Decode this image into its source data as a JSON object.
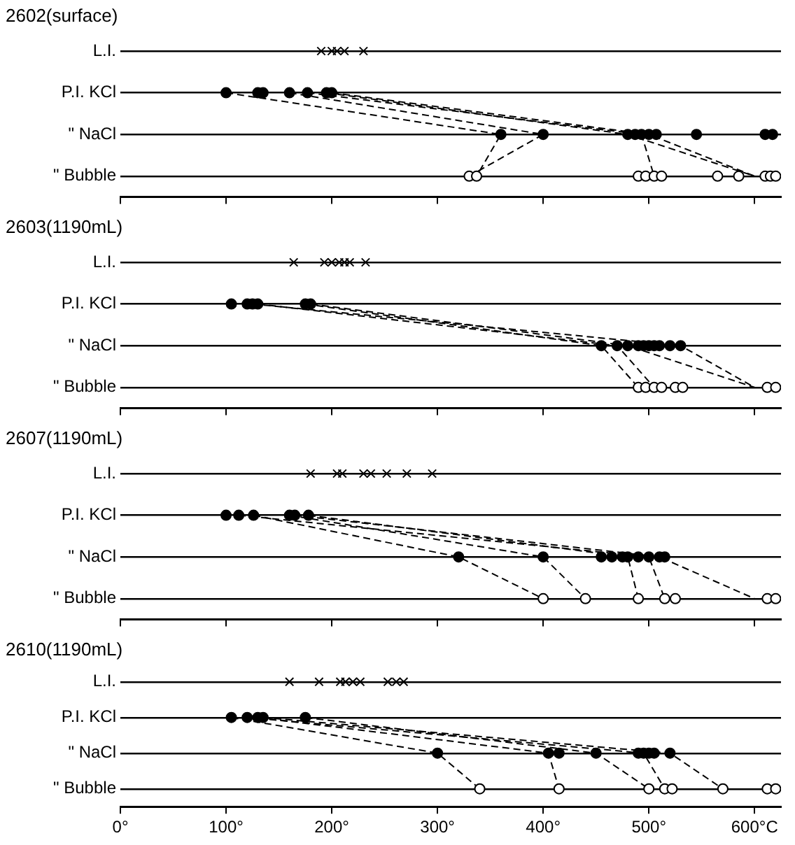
{
  "chart_data": [
    {
      "type": "scatter",
      "orientation": "horizontal",
      "title": "2602(surface)",
      "categories": [
        "L.I.",
        "P.I. KCl",
        "\" NaCl",
        "\" Bubble"
      ],
      "xlim": [
        0,
        625
      ],
      "xticks": [
        0,
        100,
        200,
        300,
        400,
        500,
        600
      ],
      "grid": "y",
      "tick_labels": "y",
      "legend": false,
      "series": [
        {
          "type": "scatter",
          "marker": "cross",
          "color": "#000000",
          "x": [
            "L.I.",
            "L.I.",
            "L.I.",
            "L.I.",
            "L.I."
          ],
          "values": [
            190,
            200,
            205,
            212,
            230
          ]
        },
        {
          "type": "scatter",
          "marker": "circle",
          "color": "#000000",
          "x": [
            "P.I. KCl",
            "P.I. KCl",
            "P.I. KCl",
            "P.I. KCl",
            "P.I. KCl",
            "P.I. KCl",
            "P.I. KCl"
          ],
          "values": [
            100,
            130,
            135,
            160,
            177,
            195,
            200
          ]
        },
        {
          "type": "scatter",
          "marker": "circle",
          "color": "#000000",
          "x": [
            "\" NaCl",
            "\" NaCl",
            "\" NaCl",
            "\" NaCl",
            "\" NaCl",
            "\" NaCl",
            "\" NaCl",
            "\" NaCl",
            "\" NaCl",
            "\" NaCl"
          ],
          "values": [
            360,
            400,
            480,
            487,
            493,
            500,
            507,
            545,
            610,
            617
          ]
        },
        {
          "type": "scatter",
          "marker": "circle",
          "color": "#ffffff",
          "x": [
            "\" Bubble",
            "\" Bubble",
            "\" Bubble",
            "\" Bubble",
            "\" Bubble",
            "\" Bubble",
            "\" Bubble",
            "\" Bubble",
            "\" Bubble",
            "\" Bubble",
            "\" Bubble"
          ],
          "values": [
            330,
            337,
            490,
            497,
            505,
            512,
            565,
            585,
            610,
            615,
            620
          ]
        },
        {
          "type": "line",
          "marker": "none",
          "line_style": "dashed",
          "color": "#000000",
          "x": [
            "P.I. KCl",
            "\" NaCl",
            "\" Bubble"
          ],
          "values": [
            100,
            360,
            337
          ]
        },
        {
          "type": "line",
          "marker": "none",
          "line_style": "dashed",
          "color": "#000000",
          "x": [
            "P.I. KCl",
            "\" NaCl",
            "\" Bubble"
          ],
          "values": [
            160,
            400,
            330
          ]
        },
        {
          "type": "line",
          "marker": "none",
          "line_style": "dashed",
          "color": "#000000",
          "x": [
            "P.I. KCl",
            "\" NaCl",
            "\" Bubble"
          ],
          "values": [
            195,
            480,
            600
          ]
        },
        {
          "type": "line",
          "marker": "none",
          "line_style": "dashed",
          "color": "#000000",
          "x": [
            "P.I. KCl",
            "\" NaCl",
            "\" Bubble"
          ],
          "values": [
            200,
            500,
            600
          ]
        },
        {
          "type": "line",
          "marker": "none",
          "line_style": "dashed",
          "color": "#000000",
          "x": [
            "P.I. KCl",
            "\" NaCl",
            "\" Bubble"
          ],
          "values": [
            177,
            493,
            505
          ]
        }
      ]
    },
    {
      "type": "scatter",
      "orientation": "horizontal",
      "title": "2603(1190mL)",
      "categories": [
        "L.I.",
        "P.I. KCl",
        "\" NaCl",
        "\" Bubble"
      ],
      "xlim": [
        0,
        625
      ],
      "xticks": [
        0,
        100,
        200,
        300,
        400,
        500,
        600
      ],
      "grid": "y",
      "tick_labels": "y",
      "legend": false,
      "series": [
        {
          "type": "scatter",
          "marker": "cross",
          "color": "#000000",
          "x": [
            "L.I.",
            "L.I.",
            "L.I.",
            "L.I.",
            "L.I.",
            "L.I.",
            "L.I."
          ],
          "values": [
            164,
            193,
            200,
            207,
            212,
            217,
            232
          ]
        },
        {
          "type": "scatter",
          "marker": "circle",
          "color": "#000000",
          "x": [
            "P.I. KCl",
            "P.I. KCl",
            "P.I. KCl",
            "P.I. KCl",
            "P.I. KCl",
            "P.I. KCl"
          ],
          "values": [
            105,
            120,
            125,
            130,
            175,
            180
          ]
        },
        {
          "type": "scatter",
          "marker": "circle",
          "color": "#000000",
          "x": [
            "\" NaCl",
            "\" NaCl",
            "\" NaCl",
            "\" NaCl",
            "\" NaCl",
            "\" NaCl",
            "\" NaCl",
            "\" NaCl",
            "\" NaCl",
            "\" NaCl"
          ],
          "values": [
            455,
            470,
            480,
            490,
            495,
            500,
            505,
            510,
            520,
            530
          ]
        },
        {
          "type": "scatter",
          "marker": "circle",
          "color": "#ffffff",
          "x": [
            "\" Bubble",
            "\" Bubble",
            "\" Bubble",
            "\" Bubble",
            "\" Bubble",
            "\" Bubble",
            "\" Bubble",
            "\" Bubble"
          ],
          "values": [
            490,
            497,
            505,
            512,
            525,
            532,
            612,
            620
          ]
        },
        {
          "type": "line",
          "marker": "none",
          "line_style": "dashed",
          "color": "#000000",
          "x": [
            "P.I. KCl",
            "\" NaCl",
            "\" Bubble"
          ],
          "values": [
            175,
            455,
            490
          ]
        },
        {
          "type": "line",
          "marker": "none",
          "line_style": "dashed",
          "color": "#000000",
          "x": [
            "P.I. KCl",
            "\" NaCl",
            "\" Bubble"
          ],
          "values": [
            180,
            480,
            600
          ]
        },
        {
          "type": "line",
          "marker": "none",
          "line_style": "dashed",
          "color": "#000000",
          "x": [
            "P.I. KCl",
            "\" NaCl",
            "\" Bubble"
          ],
          "values": [
            130,
            470,
            505
          ]
        },
        {
          "type": "line",
          "marker": "none",
          "line_style": "dashed",
          "color": "#000000",
          "x": [
            "P.I. KCl",
            "\" NaCl",
            "\" Bubble"
          ],
          "values": [
            125,
            530,
            600
          ]
        }
      ]
    },
    {
      "type": "scatter",
      "orientation": "horizontal",
      "title": "2607(1190mL)",
      "categories": [
        "L.I.",
        "P.I. KCl",
        "\" NaCl",
        "\" Bubble"
      ],
      "xlim": [
        0,
        625
      ],
      "xticks": [
        0,
        100,
        200,
        300,
        400,
        500,
        600
      ],
      "grid": "y",
      "tick_labels": "y",
      "legend": false,
      "series": [
        {
          "type": "scatter",
          "marker": "cross",
          "color": "#000000",
          "x": [
            "L.I.",
            "L.I.",
            "L.I.",
            "L.I.",
            "L.I.",
            "L.I.",
            "L.I.",
            "L.I."
          ],
          "values": [
            180,
            205,
            210,
            230,
            237,
            252,
            271,
            295
          ]
        },
        {
          "type": "scatter",
          "marker": "circle",
          "color": "#000000",
          "x": [
            "P.I. KCl",
            "P.I. KCl",
            "P.I. KCl",
            "P.I. KCl",
            "P.I. KCl",
            "P.I. KCl"
          ],
          "values": [
            100,
            112,
            126,
            160,
            165,
            178
          ]
        },
        {
          "type": "scatter",
          "marker": "circle",
          "color": "#000000",
          "x": [
            "\" NaCl",
            "\" NaCl",
            "\" NaCl",
            "\" NaCl",
            "\" NaCl",
            "\" NaCl",
            "\" NaCl",
            "\" NaCl",
            "\" NaCl",
            "\" NaCl"
          ],
          "values": [
            320,
            400,
            455,
            465,
            475,
            480,
            490,
            500,
            510,
            515
          ]
        },
        {
          "type": "scatter",
          "marker": "circle",
          "color": "#ffffff",
          "x": [
            "\" Bubble",
            "\" Bubble",
            "\" Bubble",
            "\" Bubble",
            "\" Bubble",
            "\" Bubble",
            "\" Bubble"
          ],
          "values": [
            400,
            440,
            490,
            515,
            525,
            612,
            620
          ]
        },
        {
          "type": "line",
          "marker": "none",
          "line_style": "dashed",
          "color": "#000000",
          "x": [
            "P.I. KCl",
            "\" NaCl",
            "\" Bubble"
          ],
          "values": [
            126,
            320,
            400
          ]
        },
        {
          "type": "line",
          "marker": "none",
          "line_style": "dashed",
          "color": "#000000",
          "x": [
            "P.I. KCl",
            "\" NaCl",
            "\" Bubble"
          ],
          "values": [
            160,
            400,
            440
          ]
        },
        {
          "type": "line",
          "marker": "none",
          "line_style": "dashed",
          "color": "#000000",
          "x": [
            "P.I. KCl",
            "\" NaCl",
            "\" Bubble"
          ],
          "values": [
            178,
            480,
            490
          ]
        },
        {
          "type": "line",
          "marker": "none",
          "line_style": "dashed",
          "color": "#000000",
          "x": [
            "P.I. KCl",
            "\" NaCl",
            "\" Bubble"
          ],
          "values": [
            165,
            510,
            600
          ]
        },
        {
          "type": "line",
          "marker": "none",
          "line_style": "dashed",
          "color": "#000000",
          "x": [
            "P.I. KCl",
            "\" NaCl",
            "\" Bubble"
          ],
          "values": [
            112,
            500,
            515
          ]
        }
      ]
    },
    {
      "type": "scatter",
      "orientation": "horizontal",
      "title": "2610(1190mL)",
      "categories": [
        "L.I.",
        "P.I. KCl",
        "\" NaCl",
        "\" Bubble"
      ],
      "xlim": [
        0,
        625
      ],
      "xticks": [
        {
          "value": 0,
          "label": "0°"
        },
        {
          "value": 100,
          "label": "100°"
        },
        {
          "value": 200,
          "label": "200°"
        },
        {
          "value": 300,
          "label": "300°"
        },
        {
          "value": 400,
          "label": "400°"
        },
        {
          "value": 500,
          "label": "500°"
        },
        {
          "value": 600,
          "label": "600°C"
        }
      ],
      "grid": "y",
      "legend": false,
      "series": [
        {
          "type": "scatter",
          "marker": "cross",
          "color": "#000000",
          "x": [
            "L.I.",
            "L.I.",
            "L.I.",
            "L.I.",
            "L.I.",
            "L.I.",
            "L.I.",
            "L.I.",
            "L.I."
          ],
          "values": [
            160,
            188,
            208,
            213,
            220,
            227,
            253,
            261,
            268
          ]
        },
        {
          "type": "scatter",
          "marker": "circle",
          "color": "#000000",
          "x": [
            "P.I. KCl",
            "P.I. KCl",
            "P.I. KCl",
            "P.I. KCl",
            "P.I. KCl"
          ],
          "values": [
            105,
            120,
            130,
            135,
            175
          ]
        },
        {
          "type": "scatter",
          "marker": "circle",
          "color": "#000000",
          "x": [
            "\" NaCl",
            "\" NaCl",
            "\" NaCl",
            "\" NaCl",
            "\" NaCl",
            "\" NaCl",
            "\" NaCl",
            "\" NaCl",
            "\" NaCl"
          ],
          "values": [
            300,
            405,
            415,
            450,
            490,
            495,
            500,
            505,
            520
          ]
        },
        {
          "type": "scatter",
          "marker": "circle",
          "color": "#ffffff",
          "x": [
            "\" Bubble",
            "\" Bubble",
            "\" Bubble",
            "\" Bubble",
            "\" Bubble",
            "\" Bubble",
            "\" Bubble",
            "\" Bubble"
          ],
          "values": [
            340,
            415,
            500,
            515,
            522,
            570,
            612,
            620
          ]
        },
        {
          "type": "line",
          "marker": "none",
          "line_style": "dashed",
          "color": "#000000",
          "x": [
            "P.I. KCl",
            "\" NaCl",
            "\" Bubble"
          ],
          "values": [
            105,
            300,
            340
          ]
        },
        {
          "type": "line",
          "marker": "none",
          "line_style": "dashed",
          "color": "#000000",
          "x": [
            "P.I. KCl",
            "\" NaCl",
            "\" Bubble"
          ],
          "values": [
            130,
            405,
            415
          ]
        },
        {
          "type": "line",
          "marker": "none",
          "line_style": "dashed",
          "color": "#000000",
          "x": [
            "P.I. KCl",
            "\" NaCl",
            "\" Bubble"
          ],
          "values": [
            175,
            450,
            500
          ]
        },
        {
          "type": "line",
          "marker": "none",
          "line_style": "dashed",
          "color": "#000000",
          "x": [
            "P.I. KCl",
            "\" NaCl",
            "\" Bubble"
          ],
          "values": [
            120,
            495,
            515
          ]
        },
        {
          "type": "line",
          "marker": "none",
          "line_style": "dashed",
          "color": "#000000",
          "x": [
            "P.I. KCl",
            "\" NaCl",
            "\" Bubble"
          ],
          "values": [
            135,
            520,
            570
          ]
        }
      ]
    }
  ]
}
